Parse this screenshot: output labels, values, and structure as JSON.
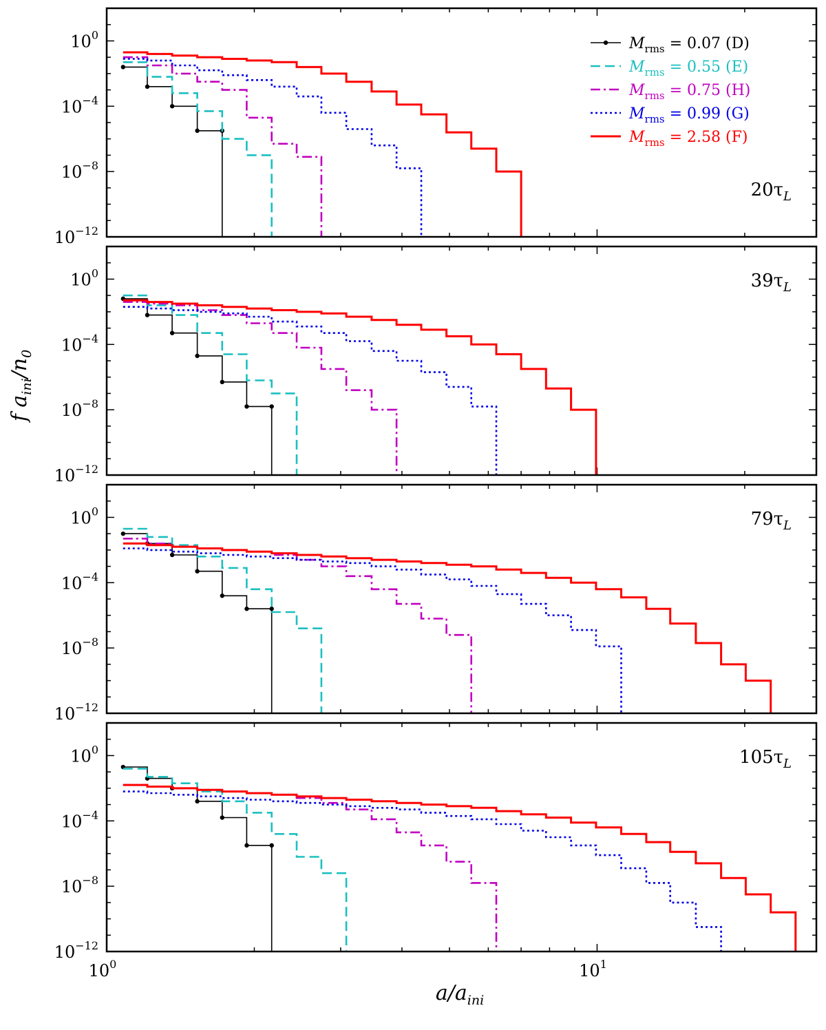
{
  "figure": {
    "xlabel": "a/a_ini",
    "ylabel": "f a_ini/n_0",
    "xlim": [
      1.0,
      28.0
    ],
    "ylim_log10": [
      -12,
      2
    ],
    "x_tick_labels": [
      "10^0",
      "10^1"
    ],
    "y_tick_labels": [
      "10^0",
      "10^-4",
      "10^-8",
      "10^-12"
    ],
    "legend_placement": "top-right of first panel"
  },
  "legend": [
    {
      "key": "D",
      "text": "M_rms = 0.07 (D)",
      "color": "#000000",
      "style": "solid-dots"
    },
    {
      "key": "E",
      "text": "M_rms = 0.55 (E)",
      "color": "#1bbfc0",
      "style": "dashed"
    },
    {
      "key": "H",
      "text": "M_rms = 0.75 (H)",
      "color": "#c000c0",
      "style": "dashdot"
    },
    {
      "key": "G",
      "text": "M_rms = 0.99 (G)",
      "color": "#0000e6",
      "style": "dotted"
    },
    {
      "key": "F",
      "text": "M_rms = 2.58 (F)",
      "color": "#ff0000",
      "style": "solid-thick"
    }
  ],
  "chart_data": [
    {
      "type": "line",
      "step": true,
      "time_label": "20τ_L",
      "bin_edges": [
        1.08,
        1.21,
        1.36,
        1.53,
        1.72,
        1.93,
        2.17,
        2.44,
        2.74,
        3.08,
        3.47,
        3.9,
        4.38,
        4.93,
        5.54,
        6.23,
        7.0,
        7.87,
        8.85,
        9.95,
        11.2,
        12.6,
        14.1,
        15.9,
        17.9,
        20.1,
        22.6,
        25.4
      ],
      "series": [
        {
          "key": "D",
          "log10_values": [
            -1.6,
            -2.8,
            -4.0,
            -5.5
          ]
        },
        {
          "key": "E",
          "log10_values": [
            -1.3,
            -2.2,
            -3.2,
            -4.3,
            -6.0,
            -7.0
          ]
        },
        {
          "key": "H",
          "log10_values": [
            -1.0,
            -1.5,
            -2.0,
            -2.5,
            -3.0,
            -4.7,
            -6.3,
            -7.1
          ]
        },
        {
          "key": "G",
          "log10_values": [
            -1.1,
            -1.2,
            -1.5,
            -1.8,
            -2.1,
            -2.4,
            -2.8,
            -3.4,
            -4.4,
            -5.4,
            -6.4,
            -7.8
          ]
        },
        {
          "key": "F",
          "log10_values": [
            -0.7,
            -0.8,
            -0.9,
            -1.0,
            -1.1,
            -1.2,
            -1.3,
            -1.6,
            -2.0,
            -2.5,
            -3.1,
            -3.9,
            -4.5,
            -5.6,
            -6.6,
            -8.0
          ]
        }
      ]
    },
    {
      "type": "line",
      "step": true,
      "time_label": "39τ_L",
      "bin_edges": [
        1.08,
        1.21,
        1.36,
        1.53,
        1.72,
        1.93,
        2.17,
        2.44,
        2.74,
        3.08,
        3.47,
        3.9,
        4.38,
        4.93,
        5.54,
        6.23,
        7.0,
        7.87,
        8.85,
        9.95,
        11.2,
        12.6,
        14.1,
        15.9,
        17.9,
        20.1,
        22.6,
        25.4
      ],
      "series": [
        {
          "key": "D",
          "log10_values": [
            -1.2,
            -2.2,
            -3.3,
            -4.7,
            -6.3,
            -7.8
          ]
        },
        {
          "key": "E",
          "log10_values": [
            -1.0,
            -1.6,
            -2.2,
            -3.3,
            -4.6,
            -6.2,
            -7.0
          ]
        },
        {
          "key": "H",
          "log10_values": [
            -1.4,
            -1.5,
            -1.6,
            -1.9,
            -2.2,
            -2.7,
            -3.3,
            -4.2,
            -5.5,
            -6.8,
            -8.0
          ]
        },
        {
          "key": "G",
          "log10_values": [
            -1.7,
            -1.8,
            -1.9,
            -2.0,
            -2.1,
            -2.3,
            -2.6,
            -2.9,
            -3.3,
            -3.8,
            -4.4,
            -5.0,
            -5.7,
            -6.6,
            -7.8
          ]
        },
        {
          "key": "F",
          "log10_values": [
            -1.3,
            -1.4,
            -1.5,
            -1.6,
            -1.7,
            -1.8,
            -1.9,
            -2.0,
            -2.1,
            -2.3,
            -2.5,
            -2.8,
            -3.1,
            -3.5,
            -4.0,
            -4.6,
            -5.5,
            -6.7,
            -8.0
          ]
        }
      ]
    },
    {
      "type": "line",
      "step": true,
      "time_label": "79τ_L",
      "bin_edges": [
        1.08,
        1.21,
        1.36,
        1.53,
        1.72,
        1.93,
        2.17,
        2.44,
        2.74,
        3.08,
        3.47,
        3.9,
        4.38,
        4.93,
        5.54,
        6.23,
        7.0,
        7.87,
        8.85,
        9.95,
        11.2,
        12.6,
        14.1,
        15.9,
        17.9,
        20.1,
        22.6,
        25.4
      ],
      "series": [
        {
          "key": "D",
          "log10_values": [
            -1.0,
            -1.6,
            -2.3,
            -3.3,
            -4.8,
            -5.6
          ]
        },
        {
          "key": "E",
          "log10_values": [
            -0.7,
            -1.2,
            -1.7,
            -2.4,
            -3.1,
            -4.4,
            -5.8,
            -6.8
          ]
        },
        {
          "key": "H",
          "log10_values": [
            -1.3,
            -1.6,
            -1.8,
            -1.9,
            -2.0,
            -2.1,
            -2.3,
            -2.6,
            -3.0,
            -3.6,
            -4.4,
            -5.3,
            -6.2,
            -7.2
          ]
        },
        {
          "key": "G",
          "log10_values": [
            -1.9,
            -2.0,
            -2.1,
            -2.2,
            -2.3,
            -2.4,
            -2.5,
            -2.6,
            -2.7,
            -2.8,
            -3.0,
            -3.2,
            -3.5,
            -3.8,
            -4.2,
            -4.7,
            -5.3,
            -6.0,
            -6.9,
            -7.9
          ]
        },
        {
          "key": "F",
          "log10_values": [
            -1.6,
            -1.7,
            -1.8,
            -1.9,
            -2.0,
            -2.1,
            -2.2,
            -2.3,
            -2.4,
            -2.5,
            -2.6,
            -2.7,
            -2.8,
            -2.9,
            -3.0,
            -3.2,
            -3.4,
            -3.7,
            -4.0,
            -4.4,
            -4.9,
            -5.6,
            -6.5,
            -7.7,
            -9.0,
            -10.0
          ]
        }
      ]
    },
    {
      "type": "line",
      "step": true,
      "time_label": "105τ_L",
      "bin_edges": [
        1.08,
        1.21,
        1.36,
        1.53,
        1.72,
        1.93,
        2.17,
        2.44,
        2.74,
        3.08,
        3.47,
        3.9,
        4.38,
        4.93,
        5.54,
        6.23,
        7.0,
        7.87,
        8.85,
        9.95,
        11.2,
        12.6,
        14.1,
        15.9,
        17.9,
        20.1,
        22.6,
        25.4
      ],
      "series": [
        {
          "key": "D",
          "log10_values": [
            -0.7,
            -1.4,
            -2.0,
            -2.8,
            -3.8,
            -5.5
          ]
        },
        {
          "key": "E",
          "log10_values": [
            -0.8,
            -1.3,
            -1.7,
            -2.2,
            -2.8,
            -3.5,
            -4.8,
            -6.2,
            -7.2
          ]
        },
        {
          "key": "H",
          "log10_values": [
            -1.8,
            -1.9,
            -2.0,
            -2.1,
            -2.2,
            -2.3,
            -2.4,
            -2.6,
            -2.9,
            -3.3,
            -3.9,
            -4.7,
            -5.5,
            -6.5,
            -7.8
          ]
        },
        {
          "key": "G",
          "log10_values": [
            -2.2,
            -2.3,
            -2.4,
            -2.5,
            -2.6,
            -2.7,
            -2.8,
            -2.9,
            -3.0,
            -3.1,
            -3.2,
            -3.3,
            -3.5,
            -3.7,
            -3.9,
            -4.2,
            -4.6,
            -5.0,
            -5.5,
            -6.1,
            -6.9,
            -7.8,
            -9.0,
            -10.5
          ]
        },
        {
          "key": "F",
          "log10_values": [
            -1.8,
            -1.9,
            -2.0,
            -2.1,
            -2.2,
            -2.3,
            -2.4,
            -2.5,
            -2.6,
            -2.7,
            -2.8,
            -2.9,
            -3.0,
            -3.1,
            -3.2,
            -3.4,
            -3.6,
            -3.8,
            -4.1,
            -4.4,
            -4.8,
            -5.3,
            -5.9,
            -6.6,
            -7.5,
            -8.5,
            -9.6
          ]
        }
      ]
    }
  ]
}
